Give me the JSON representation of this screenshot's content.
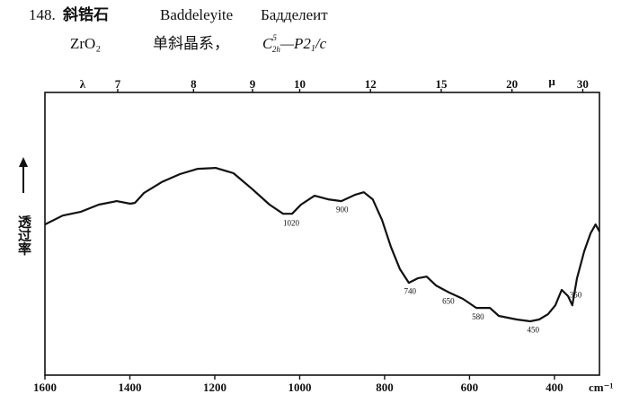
{
  "chart_data": {
    "type": "line",
    "number": "148.",
    "title_cn": "斜锆石",
    "title_en": "Baddeleyite",
    "title_ru": "Бадделеит",
    "formula": "ZrO₂",
    "crystal_system": "单斜晶系，",
    "space_group": {
      "symbol": "C",
      "sup": "5",
      "sub": "2h",
      "rest": "—P2",
      "rest_sub": "1",
      "tail": "/c"
    },
    "y_label": "透过率",
    "x_unit": "cm⁻¹",
    "top_axis_symbol": "λ",
    "top_axis_unit": "μ",
    "xlim": [
      1600,
      294
    ],
    "ylim": [
      0,
      95.5
    ],
    "xticks": [
      1600,
      1400,
      1200,
      1000,
      800,
      600,
      400
    ],
    "top_ticks": [
      7,
      8,
      9,
      10,
      12,
      15,
      20,
      30
    ],
    "color": "#111111",
    "x": [
      1600,
      1558,
      1515,
      1473,
      1431,
      1399,
      1388,
      1367,
      1325,
      1282,
      1240,
      1198,
      1156,
      1113,
      1071,
      1039,
      1018,
      997,
      965,
      933,
      902,
      870,
      849,
      828,
      806,
      785,
      764,
      743,
      722,
      701,
      679,
      648,
      616,
      584,
      552,
      531,
      489,
      457,
      436,
      415,
      398,
      383,
      368,
      358,
      347,
      330,
      315,
      303,
      294
    ],
    "values": [
      50.9,
      53.9,
      55.2,
      57.6,
      58.8,
      57.9,
      58.2,
      61.5,
      65.2,
      67.9,
      69.7,
      70.0,
      68.2,
      63.0,
      57.6,
      54.5,
      54.5,
      57.6,
      60.6,
      59.4,
      58.8,
      60.9,
      61.8,
      59.4,
      52.4,
      43.3,
      35.8,
      31.2,
      32.7,
      33.3,
      30.3,
      27.9,
      25.8,
      22.7,
      22.7,
      20.0,
      18.8,
      18.2,
      18.8,
      20.6,
      23.6,
      28.8,
      26.7,
      23.6,
      32.7,
      41.8,
      47.9,
      50.9,
      48.5
    ],
    "peak_labels": [
      1020,
      900,
      740,
      650,
      580,
      450,
      350
    ]
  }
}
